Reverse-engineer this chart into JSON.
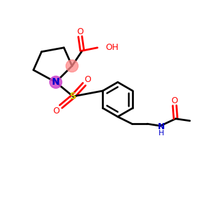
{
  "bg_color": "#ffffff",
  "bond_color": "#000000",
  "N_color": "#0000cc",
  "O_color": "#ff0000",
  "S_color": "#cccc00",
  "alpha_highlight": "#ff8888",
  "N_highlight": "#cc44cc",
  "figsize": [
    3.0,
    3.0
  ],
  "dpi": 100,
  "xlim": [
    0,
    10
  ],
  "ylim": [
    0,
    10
  ]
}
